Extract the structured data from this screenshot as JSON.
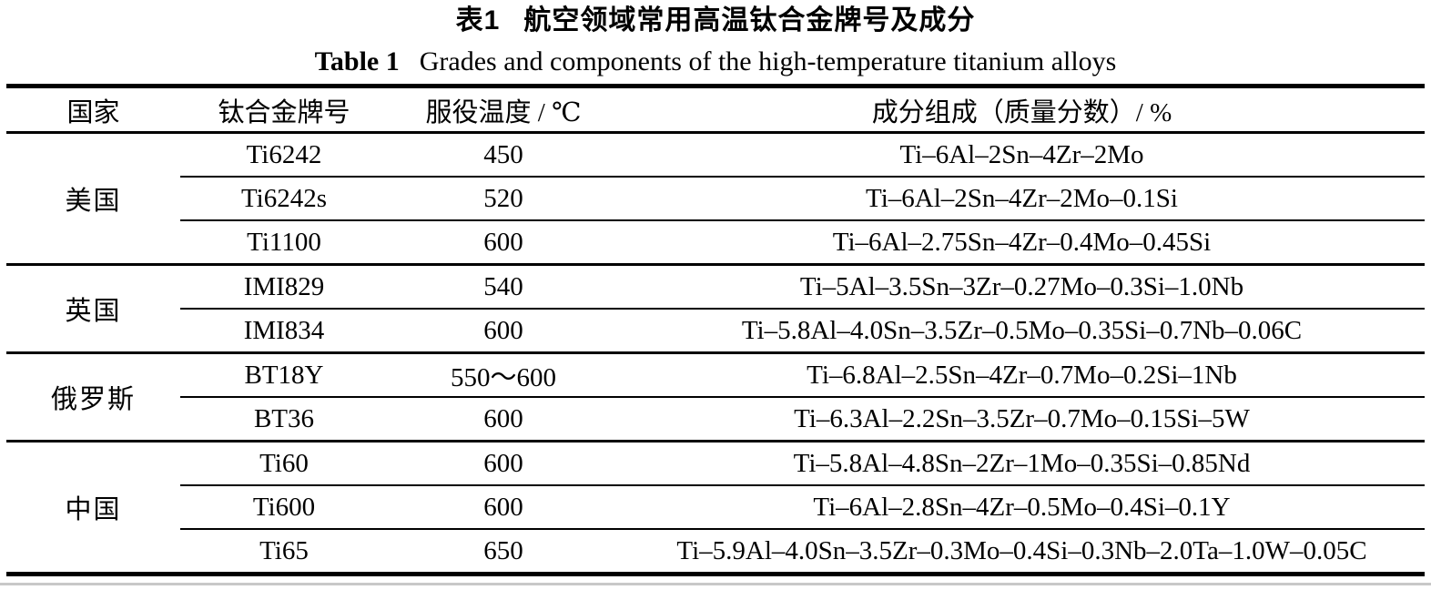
{
  "caption_cn": {
    "label": "表1",
    "text": "航空领域常用高温钛合金牌号及成分"
  },
  "caption_en": {
    "label": "Table 1",
    "text": "Grades and components of the high-temperature titanium alloys"
  },
  "table": {
    "columns": [
      "国家",
      "钛合金牌号",
      "服役温度 / ℃",
      "成分组成（质量分数）/ %"
    ],
    "groups": [
      {
        "country": "美国",
        "rows": [
          {
            "grade": "Ti6242",
            "temp": "450",
            "composition": "Ti–6Al–2Sn–4Zr–2Mo"
          },
          {
            "grade": "Ti6242s",
            "temp": "520",
            "composition": "Ti–6Al–2Sn–4Zr–2Mo–0.1Si"
          },
          {
            "grade": "Ti1100",
            "temp": "600",
            "composition": "Ti–6Al–2.75Sn–4Zr–0.4Mo–0.45Si"
          }
        ]
      },
      {
        "country": "英国",
        "rows": [
          {
            "grade": "IMI829",
            "temp": "540",
            "composition": "Ti–5Al–3.5Sn–3Zr–0.27Mo–0.3Si–1.0Nb"
          },
          {
            "grade": "IMI834",
            "temp": "600",
            "composition": "Ti–5.8Al–4.0Sn–3.5Zr–0.5Mo–0.35Si–0.7Nb–0.06C"
          }
        ]
      },
      {
        "country": "俄罗斯",
        "rows": [
          {
            "grade": "BT18Y",
            "temp": "550～600",
            "composition": "Ti–6.8Al–2.5Sn–4Zr–0.7Mo–0.2Si–1Nb"
          },
          {
            "grade": "BT36",
            "temp": "600",
            "composition": "Ti–6.3Al–2.2Sn–3.5Zr–0.7Mo–0.15Si–5W"
          }
        ]
      },
      {
        "country": "中国",
        "rows": [
          {
            "grade": "Ti60",
            "temp": "600",
            "composition": "Ti–5.8Al–4.8Sn–2Zr–1Mo–0.35Si–0.85Nd"
          },
          {
            "grade": "Ti600",
            "temp": "600",
            "composition": "Ti–6Al–2.8Sn–4Zr–0.5Mo–0.4Si–0.1Y"
          },
          {
            "grade": "Ti65",
            "temp": "650",
            "composition": "Ti–5.9Al–4.0Sn–3.5Zr–0.3Mo–0.4Si–0.3Nb–2.0Ta–1.0W–0.05C"
          }
        ]
      }
    ]
  },
  "colors": {
    "text": "#000000",
    "background": "#ffffff",
    "rule": "#000000",
    "scan_line": "#9a9a9a"
  }
}
